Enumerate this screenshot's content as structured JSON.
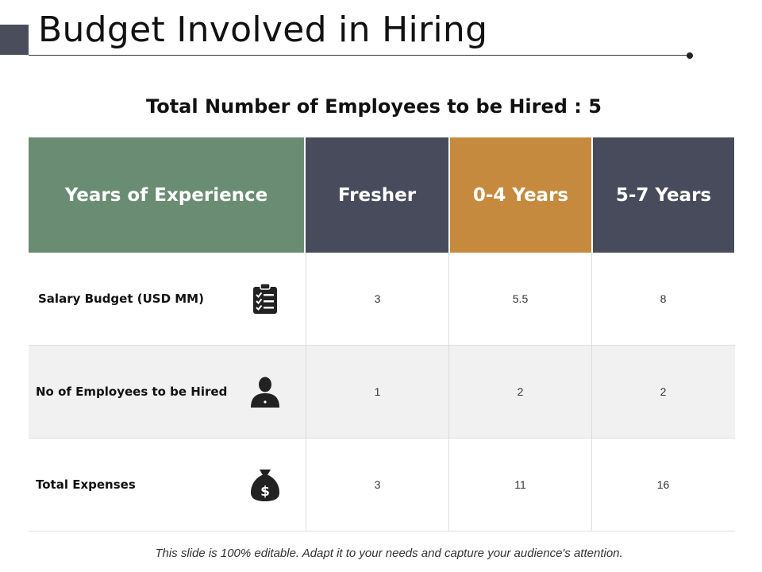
{
  "title": "Budget Involved in Hiring",
  "subtitle": "Total Number of Employees to be Hired :  5",
  "table": {
    "headers": [
      "Years of Experience",
      "Fresher",
      "0-4 Years",
      "5-7 Years"
    ],
    "header_colors": [
      "#6a8c72",
      "#474b5b",
      "#c68a3e",
      "#474b5b"
    ],
    "rows": [
      {
        "label": "Salary Budget (USD MM)",
        "icon": "clipboard-checklist-icon",
        "values": [
          "3",
          "5.5",
          "8"
        ]
      },
      {
        "label": "No of Employees  to be Hired",
        "icon": "person-icon",
        "values": [
          "1",
          "2",
          "2"
        ]
      },
      {
        "label": "Total Expenses",
        "icon": "money-bag-icon",
        "values": [
          "3",
          "11",
          "16"
        ]
      }
    ]
  },
  "footnote": "This slide is 100% editable. Adapt it to your needs and capture your audience's attention."
}
